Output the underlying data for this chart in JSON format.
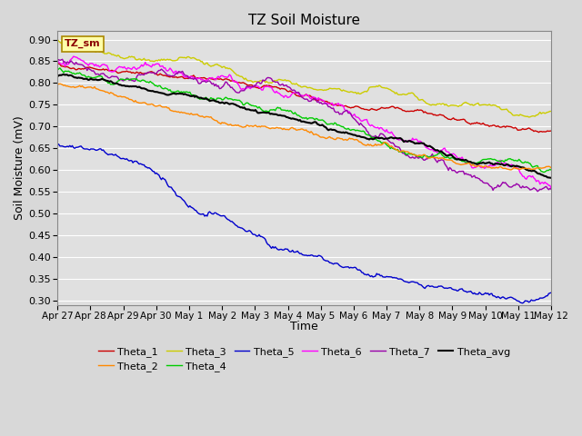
{
  "title": "TZ Soil Moisture",
  "xlabel": "Time",
  "ylabel": "Soil Moisture (mV)",
  "ylim": [
    0.29,
    0.92
  ],
  "xlim": [
    0,
    15
  ],
  "xtick_labels": [
    "Apr 27",
    "Apr 28",
    "Apr 29",
    "Apr 30",
    "May 1",
    "May 2",
    "May 3",
    "May 4",
    "May 5",
    "May 6",
    "May 7",
    "May 8",
    "May 9",
    "May 10",
    "May 11",
    "May 12"
  ],
  "xtick_positions": [
    0,
    1,
    2,
    3,
    4,
    5,
    6,
    7,
    8,
    9,
    10,
    11,
    12,
    13,
    14,
    15
  ],
  "ytick_positions": [
    0.3,
    0.35,
    0.4,
    0.45,
    0.5,
    0.55,
    0.6,
    0.65,
    0.7,
    0.75,
    0.8,
    0.85,
    0.9
  ],
  "series": {
    "Theta_1": {
      "color": "#cc0000"
    },
    "Theta_2": {
      "color": "#ff8800"
    },
    "Theta_3": {
      "color": "#cccc00"
    },
    "Theta_4": {
      "color": "#00cc00"
    },
    "Theta_5": {
      "color": "#0000cc"
    },
    "Theta_6": {
      "color": "#ff00ff"
    },
    "Theta_7": {
      "color": "#9900aa"
    },
    "Theta_avg": {
      "color": "#000000"
    }
  },
  "legend_label": "TZ_sm",
  "background_color": "#e0e0e0",
  "grid_color": "#ffffff",
  "n_points": 400
}
